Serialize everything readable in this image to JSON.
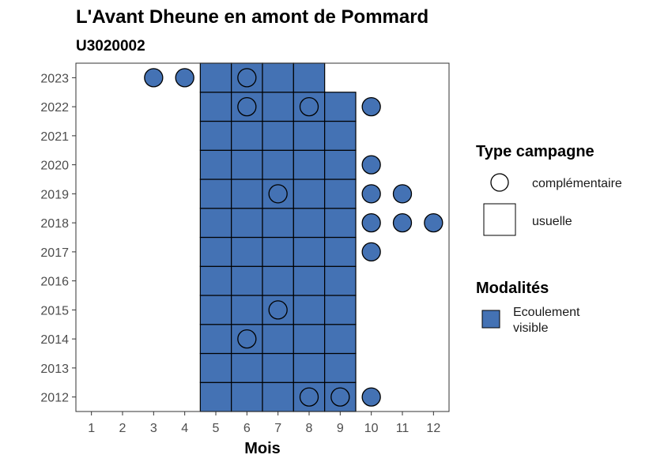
{
  "chart_data": {
    "type": "heatmap",
    "title": "L'Avant Dheune en amont de Pommard",
    "subtitle": "U3020002",
    "xlabel": "Mois",
    "ylabel": "",
    "x_ticks": [
      1,
      2,
      3,
      4,
      5,
      6,
      7,
      8,
      9,
      10,
      11,
      12
    ],
    "y_ticks": [
      2012,
      2013,
      2014,
      2015,
      2016,
      2017,
      2018,
      2019,
      2020,
      2021,
      2022,
      2023
    ],
    "xlim": [
      0.5,
      12.5
    ],
    "ylim": [
      2011.5,
      2023.5
    ],
    "grid": false,
    "fill_color": "#4472b4",
    "legend_placement": "right",
    "usuelle": [
      {
        "year": 2012,
        "months": [
          5,
          6,
          7,
          8,
          9
        ]
      },
      {
        "year": 2013,
        "months": [
          5,
          6,
          7,
          8,
          9
        ]
      },
      {
        "year": 2014,
        "months": [
          5,
          6,
          7,
          8,
          9
        ]
      },
      {
        "year": 2015,
        "months": [
          5,
          6,
          7,
          8,
          9
        ]
      },
      {
        "year": 2016,
        "months": [
          5,
          6,
          7,
          8,
          9
        ]
      },
      {
        "year": 2017,
        "months": [
          5,
          6,
          7,
          8,
          9
        ]
      },
      {
        "year": 2018,
        "months": [
          5,
          6,
          7,
          8,
          9
        ]
      },
      {
        "year": 2019,
        "months": [
          5,
          6,
          7,
          8,
          9
        ]
      },
      {
        "year": 2020,
        "months": [
          5,
          6,
          7,
          8,
          9
        ]
      },
      {
        "year": 2021,
        "months": [
          5,
          6,
          7,
          8,
          9
        ]
      },
      {
        "year": 2022,
        "months": [
          5,
          6,
          7,
          8,
          9
        ]
      },
      {
        "year": 2023,
        "months": [
          5,
          6,
          7,
          8
        ]
      }
    ],
    "complementaire": [
      {
        "year": 2012,
        "months": [
          8,
          9,
          10
        ]
      },
      {
        "year": 2014,
        "months": [
          6
        ]
      },
      {
        "year": 2015,
        "months": [
          7
        ]
      },
      {
        "year": 2017,
        "months": [
          10
        ]
      },
      {
        "year": 2018,
        "months": [
          10,
          11,
          12
        ]
      },
      {
        "year": 2019,
        "months": [
          7,
          10,
          11
        ]
      },
      {
        "year": 2020,
        "months": [
          10
        ]
      },
      {
        "year": 2022,
        "months": [
          6,
          8,
          10
        ]
      },
      {
        "year": 2023,
        "months": [
          3,
          4,
          6
        ]
      }
    ],
    "legend": {
      "type_title": "Type campagne",
      "type_items": [
        "complémentaire",
        "usuelle"
      ],
      "modalites_title": "Modalités",
      "modalites_items": [
        "Ecoulement visible"
      ]
    }
  }
}
